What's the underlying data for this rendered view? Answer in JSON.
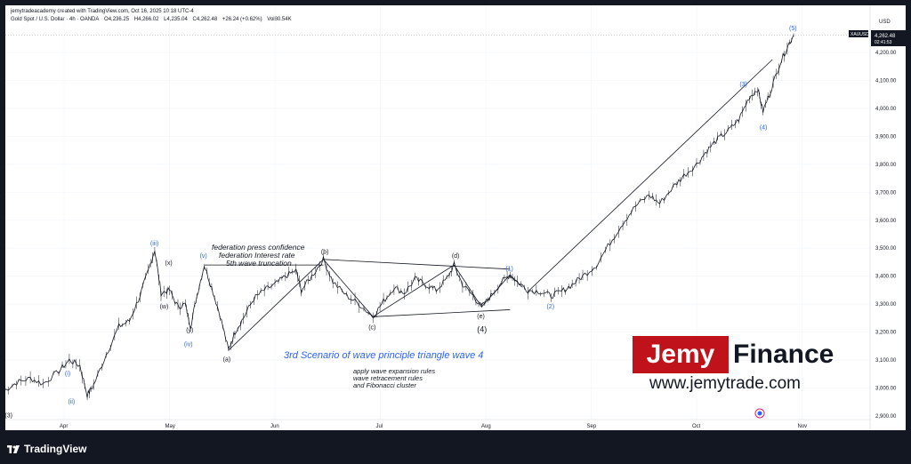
{
  "header": {
    "created_by": "jemytradeacademy created with TradingView.com, Oct 16, 2025 10:18 UTC-4"
  },
  "symbol_bar": {
    "symbol": "Gold Spot / U.S. Dollar · 4h · OANDA",
    "open": "O4,236.25",
    "high": "H4,266.02",
    "low": "L4,235.04",
    "close": "C4,262.48",
    "change": "+26.24 (+0.62%)",
    "volume": "Vol80.54K"
  },
  "price_axis": {
    "currency": "USD",
    "ticker_label": "XAUUSD",
    "last_price": "4,262.48",
    "countdown": "02:41:53"
  },
  "chart_data": {
    "type": "line",
    "ylim": [
      2900,
      4300
    ],
    "yticks": [
      "4,200.00",
      "4,100.00",
      "4,000.00",
      "3,900.00",
      "3,800.00",
      "3,700.00",
      "3,600.00",
      "3,500.00",
      "3,400.00",
      "3,300.00",
      "3,200.00",
      "3,100.00",
      "3,000.00",
      "2,900.00"
    ],
    "ytick_values": [
      4200,
      4100,
      4000,
      3900,
      3800,
      3700,
      3600,
      3500,
      3400,
      3300,
      3200,
      3100,
      3000,
      2900
    ],
    "xticks": [
      {
        "label": "Apr",
        "t": 2.0
      },
      {
        "label": "May",
        "t": 3.0
      },
      {
        "label": "Jun",
        "t": 4.0
      },
      {
        "label": "Jul",
        "t": 5.0
      },
      {
        "label": "Aug",
        "t": 6.0
      },
      {
        "label": "Sep",
        "t": 7.0
      },
      {
        "label": "Oct",
        "t": 8.0
      },
      {
        "label": "Nov",
        "t": 9.0
      }
    ],
    "price_path": [
      [
        1.43,
        2990
      ],
      [
        1.55,
        3020
      ],
      [
        1.68,
        3035
      ],
      [
        1.8,
        3015
      ],
      [
        1.95,
        3060
      ],
      [
        2.05,
        3100
      ],
      [
        2.15,
        3080
      ],
      [
        2.22,
        2975
      ],
      [
        2.28,
        3010
      ],
      [
        2.4,
        3120
      ],
      [
        2.52,
        3220
      ],
      [
        2.62,
        3240
      ],
      [
        2.72,
        3330
      ],
      [
        2.8,
        3420
      ],
      [
        2.86,
        3495
      ],
      [
        2.92,
        3340
      ],
      [
        3.0,
        3350
      ],
      [
        3.08,
        3290
      ],
      [
        3.15,
        3300
      ],
      [
        3.2,
        3220
      ],
      [
        3.26,
        3330
      ],
      [
        3.33,
        3440
      ],
      [
        3.4,
        3360
      ],
      [
        3.48,
        3260
      ],
      [
        3.56,
        3135
      ],
      [
        3.62,
        3200
      ],
      [
        3.7,
        3250
      ],
      [
        3.8,
        3320
      ],
      [
        3.9,
        3350
      ],
      [
        4.0,
        3370
      ],
      [
        4.1,
        3400
      ],
      [
        4.2,
        3420
      ],
      [
        4.25,
        3350
      ],
      [
        4.35,
        3400
      ],
      [
        4.46,
        3460
      ],
      [
        4.55,
        3380
      ],
      [
        4.68,
        3330
      ],
      [
        4.8,
        3300
      ],
      [
        4.93,
        3255
      ],
      [
        5.03,
        3310
      ],
      [
        5.13,
        3360
      ],
      [
        5.23,
        3340
      ],
      [
        5.33,
        3390
      ],
      [
        5.43,
        3370
      ],
      [
        5.53,
        3350
      ],
      [
        5.63,
        3390
      ],
      [
        5.7,
        3440
      ],
      [
        5.78,
        3370
      ],
      [
        5.88,
        3330
      ],
      [
        5.96,
        3290
      ],
      [
        6.05,
        3330
      ],
      [
        6.15,
        3380
      ],
      [
        6.23,
        3405
      ],
      [
        6.3,
        3380
      ],
      [
        6.4,
        3350
      ],
      [
        6.52,
        3345
      ],
      [
        6.62,
        3330
      ],
      [
        6.72,
        3345
      ],
      [
        6.82,
        3370
      ],
      [
        6.92,
        3400
      ],
      [
        7.05,
        3440
      ],
      [
        7.18,
        3520
      ],
      [
        7.3,
        3590
      ],
      [
        7.42,
        3650
      ],
      [
        7.55,
        3690
      ],
      [
        7.65,
        3660
      ],
      [
        7.78,
        3720
      ],
      [
        7.88,
        3760
      ],
      [
        8.0,
        3800
      ],
      [
        8.1,
        3850
      ],
      [
        8.2,
        3890
      ],
      [
        8.3,
        3920
      ],
      [
        8.4,
        3960
      ],
      [
        8.5,
        4040
      ],
      [
        8.58,
        4070
      ],
      [
        8.63,
        3990
      ],
      [
        8.7,
        4060
      ],
      [
        8.78,
        4150
      ],
      [
        8.86,
        4220
      ],
      [
        8.92,
        4262
      ]
    ],
    "wave_labels": [
      {
        "text": "(iii)",
        "t": 2.86,
        "y": 3510,
        "color": "blue"
      },
      {
        "text": "(x)",
        "t": 3.0,
        "y": 3440,
        "color": "black"
      },
      {
        "text": "(w)",
        "t": 2.95,
        "y": 3285,
        "color": "black"
      },
      {
        "text": "(y)",
        "t": 3.2,
        "y": 3200,
        "color": "black"
      },
      {
        "text": "(iv)",
        "t": 3.18,
        "y": 3150,
        "color": "blue"
      },
      {
        "text": "(v)",
        "t": 3.33,
        "y": 3465,
        "color": "blue"
      },
      {
        "text": "(i)",
        "t": 2.05,
        "y": 3045,
        "color": "blue"
      },
      {
        "text": "(ii)",
        "t": 2.08,
        "y": 2945,
        "color": "blue"
      },
      {
        "text": "(3)",
        "t": 1.48,
        "y": 2895,
        "color": "black"
      },
      {
        "text": "(a)",
        "t": 3.55,
        "y": 3095,
        "color": "black"
      },
      {
        "text": "(b)",
        "t": 4.48,
        "y": 3480,
        "color": "black"
      },
      {
        "text": "(c)",
        "t": 4.93,
        "y": 3210,
        "color": "black"
      },
      {
        "text": "(d)",
        "t": 5.72,
        "y": 3465,
        "color": "black"
      },
      {
        "text": "(e)",
        "t": 5.96,
        "y": 3250,
        "color": "black"
      },
      {
        "text": "(4)",
        "t": 5.96,
        "y": 3200,
        "color": "black"
      },
      {
        "text": "(1)",
        "t": 6.23,
        "y": 3420,
        "color": "blue"
      },
      {
        "text": "(2)",
        "t": 6.62,
        "y": 3285,
        "color": "blue"
      },
      {
        "text": "(3)",
        "t": 8.45,
        "y": 4080,
        "color": "blue"
      },
      {
        "text": "(4)",
        "t": 8.64,
        "y": 3925,
        "color": "blue"
      },
      {
        "text": "(5)",
        "t": 8.92,
        "y": 4280,
        "color": "blue"
      }
    ],
    "annotations": {
      "fed_lines": [
        "federation press confidence",
        "federation Interest rate",
        "5th wave truncation"
      ],
      "scenario_title": "3rd Scenario of wave principle triangle wave 4",
      "rules": [
        "apply wave expansion rules",
        "wave retracement rules",
        "and Fibonacci cluster"
      ]
    },
    "trendlines": [
      [
        [
          3.56,
          3135
        ],
        [
          4.46,
          3460
        ]
      ],
      [
        [
          4.46,
          3460
        ],
        [
          6.23,
          3425
        ]
      ],
      [
        [
          4.93,
          3255
        ],
        [
          6.23,
          3280
        ]
      ],
      [
        [
          4.46,
          3460
        ],
        [
          4.93,
          3255
        ]
      ],
      [
        [
          4.93,
          3255
        ],
        [
          5.7,
          3440
        ]
      ],
      [
        [
          5.7,
          3440
        ],
        [
          5.96,
          3290
        ]
      ],
      [
        [
          5.96,
          3290
        ],
        [
          6.23,
          3405
        ]
      ],
      [
        [
          6.23,
          3405
        ],
        [
          6.35,
          3360
        ]
      ],
      [
        [
          6.4,
          3345
        ],
        [
          8.72,
          4175
        ]
      ],
      [
        [
          3.33,
          3440
        ],
        [
          4.46,
          3440
        ]
      ]
    ]
  },
  "branding": {
    "jemy": "Jemy",
    "finance": "Finance",
    "website": "www.jemytrade.com",
    "tradingview": "TradingView"
  },
  "colors": {
    "background": "#131722",
    "panel": "#ffffff",
    "price_line": "#131722",
    "wave_blue": "#2962ff",
    "brand_red": "#c0121b"
  }
}
